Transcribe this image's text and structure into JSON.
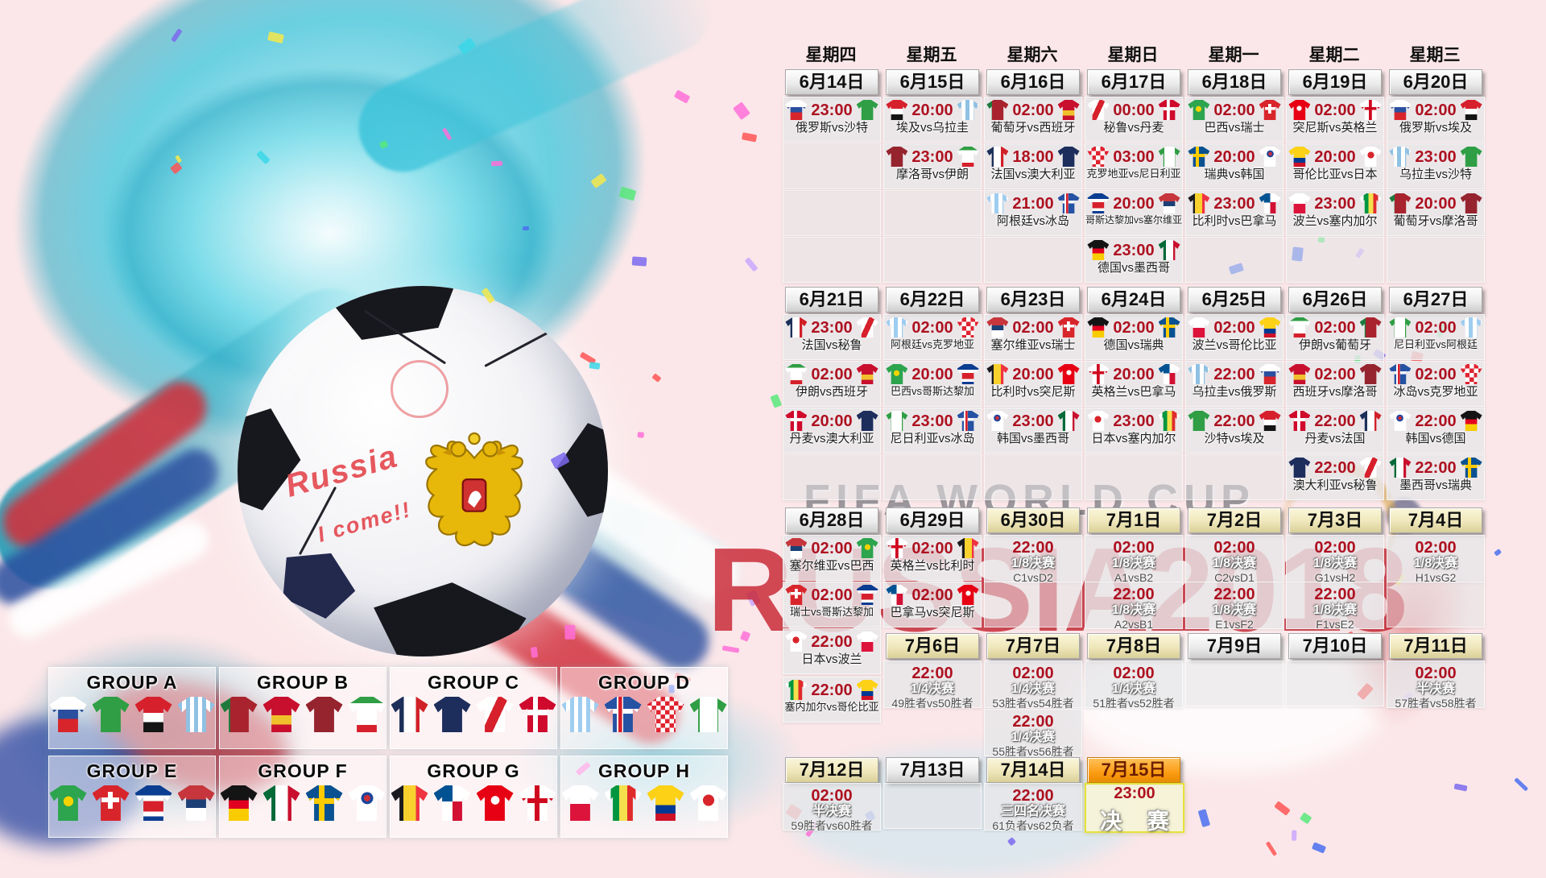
{
  "watermark": {
    "line1": "FIFA WORLD CUP",
    "line2": "RUSSIA2018"
  },
  "ball_text": {
    "line1": "Russia",
    "line2": "I come!!"
  },
  "colors": {
    "accent_red": "#ae1120",
    "bg_pink": "#fbe7e9",
    "splash_cyan": "#45c8dc",
    "date_white": "#ececec",
    "date_cream": "#efe7bb",
    "date_orange": "#fb9d14",
    "final_border_yellow": "#e7e13c"
  },
  "schedule": {
    "day_names": [
      "星期四",
      "星期五",
      "星期六",
      "星期日",
      "星期一",
      "星期二",
      "星期三"
    ],
    "rows": [
      {
        "type": "dates",
        "cells": [
          {
            "label": "6月14日",
            "style": "white"
          },
          {
            "label": "6月15日",
            "style": "white"
          },
          {
            "label": "6月16日",
            "style": "white"
          },
          {
            "label": "6月17日",
            "style": "white"
          },
          {
            "label": "6月18日",
            "style": "white"
          },
          {
            "label": "6月19日",
            "style": "white"
          },
          {
            "label": "6月20日",
            "style": "white"
          }
        ]
      },
      {
        "type": "matches",
        "cells": [
          {
            "time": "23:00",
            "teams": "俄罗斯vs沙特",
            "left": "russia",
            "right": "saudi"
          },
          {
            "time": "20:00",
            "teams": "埃及vs乌拉圭",
            "left": "egypt",
            "right": "uruguay"
          },
          {
            "time": "02:00",
            "teams": "葡萄牙vs西班牙",
            "left": "portugal",
            "right": "spain"
          },
          {
            "time": "00:00",
            "teams": "秘鲁vs丹麦",
            "left": "peru",
            "right": "denmark"
          },
          {
            "time": "02:00",
            "teams": "巴西vs瑞士",
            "left": "brazil",
            "right": "switzerland"
          },
          {
            "time": "02:00",
            "teams": "突尼斯vs英格兰",
            "left": "tunisia",
            "right": "england"
          },
          {
            "time": "02:00",
            "teams": "俄罗斯vs埃及",
            "left": "russia",
            "right": "egypt"
          }
        ]
      },
      {
        "type": "matches",
        "cells": [
          {
            "empty": true
          },
          {
            "time": "23:00",
            "teams": "摩洛哥vs伊朗",
            "left": "morocco",
            "right": "iran"
          },
          {
            "time": "18:00",
            "teams": "法国vs澳大利亚",
            "left": "france",
            "right": "australia"
          },
          {
            "time": "03:00",
            "teams": "克罗地亚vs尼日利亚",
            "left": "croatia",
            "right": "nigeria"
          },
          {
            "time": "20:00",
            "teams": "瑞典vs韩国",
            "left": "sweden",
            "right": "korea"
          },
          {
            "time": "20:00",
            "teams": "哥伦比亚vs日本",
            "left": "colombia",
            "right": "japan"
          },
          {
            "time": "23:00",
            "teams": "乌拉圭vs沙特",
            "left": "uruguay",
            "right": "saudi"
          }
        ]
      },
      {
        "type": "matches",
        "cells": [
          {
            "empty": true
          },
          {
            "empty": true
          },
          {
            "time": "21:00",
            "teams": "阿根廷vs冰岛",
            "left": "argentina",
            "right": "iceland"
          },
          {
            "time": "20:00",
            "teams": "哥斯达黎加vs塞尔维亚",
            "left": "costarica",
            "right": "serbia"
          },
          {
            "time": "23:00",
            "teams": "比利时vs巴拿马",
            "left": "belgium",
            "right": "panama"
          },
          {
            "time": "23:00",
            "teams": "波兰vs塞内加尔",
            "left": "poland",
            "right": "senegal"
          },
          {
            "time": "20:00",
            "teams": "葡萄牙vs摩洛哥",
            "left": "portugal",
            "right": "morocco"
          }
        ]
      },
      {
        "type": "matches",
        "cells": [
          {
            "empty": true
          },
          {
            "empty": true
          },
          {
            "empty": true
          },
          {
            "time": "23:00",
            "teams": "德国vs墨西哥",
            "left": "germany",
            "right": "mexico"
          },
          {
            "empty": true
          },
          {
            "empty": true
          },
          {
            "empty": true
          }
        ]
      },
      {
        "type": "dates",
        "cells": [
          {
            "label": "6月21日",
            "style": "white"
          },
          {
            "label": "6月22日",
            "style": "white"
          },
          {
            "label": "6月23日",
            "style": "white"
          },
          {
            "label": "6月24日",
            "style": "white"
          },
          {
            "label": "6月25日",
            "style": "white"
          },
          {
            "label": "6月26日",
            "style": "white"
          },
          {
            "label": "6月27日",
            "style": "white"
          }
        ]
      },
      {
        "type": "matches",
        "cells": [
          {
            "time": "23:00",
            "teams": "法国vs秘鲁",
            "left": "france",
            "right": "peru"
          },
          {
            "time": "02:00",
            "teams": "阿根廷vs克罗地亚",
            "left": "argentina",
            "right": "croatia"
          },
          {
            "time": "02:00",
            "teams": "塞尔维亚vs瑞士",
            "left": "serbia",
            "right": "switzerland"
          },
          {
            "time": "02:00",
            "teams": "德国vs瑞典",
            "left": "germany",
            "right": "sweden"
          },
          {
            "time": "02:00",
            "teams": "波兰vs哥伦比亚",
            "left": "poland",
            "right": "colombia"
          },
          {
            "time": "02:00",
            "teams": "伊朗vs葡萄牙",
            "left": "iran",
            "right": "portugal"
          },
          {
            "time": "02:00",
            "teams": "尼日利亚vs阿根廷",
            "left": "nigeria",
            "right": "argentina"
          }
        ]
      },
      {
        "type": "matches",
        "cells": [
          {
            "time": "02:00",
            "teams": "伊朗vs西班牙",
            "left": "iran",
            "right": "spain"
          },
          {
            "time": "20:00",
            "teams": "巴西vs哥斯达黎加",
            "left": "brazil",
            "right": "costarica"
          },
          {
            "time": "20:00",
            "teams": "比利时vs突尼斯",
            "left": "belgium",
            "right": "tunisia"
          },
          {
            "time": "20:00",
            "teams": "英格兰vs巴拿马",
            "left": "england",
            "right": "panama"
          },
          {
            "time": "22:00",
            "teams": "乌拉圭vs俄罗斯",
            "left": "uruguay",
            "right": "russia"
          },
          {
            "time": "02:00",
            "teams": "西班牙vs摩洛哥",
            "left": "spain",
            "right": "morocco"
          },
          {
            "time": "02:00",
            "teams": "冰岛vs克罗地亚",
            "left": "iceland",
            "right": "croatia"
          }
        ]
      },
      {
        "type": "matches",
        "cells": [
          {
            "time": "20:00",
            "teams": "丹麦vs澳大利亚",
            "left": "denmark",
            "right": "australia"
          },
          {
            "time": "23:00",
            "teams": "尼日利亚vs冰岛",
            "left": "nigeria",
            "right": "iceland"
          },
          {
            "time": "23:00",
            "teams": "韩国vs墨西哥",
            "left": "korea",
            "right": "mexico"
          },
          {
            "time": "23:00",
            "teams": "日本vs塞内加尔",
            "left": "japan",
            "right": "senegal"
          },
          {
            "time": "22:00",
            "teams": "沙特vs埃及",
            "left": "saudi",
            "right": "egypt"
          },
          {
            "time": "22:00",
            "teams": "丹麦vs法国",
            "left": "denmark",
            "right": "france"
          },
          {
            "time": "22:00",
            "teams": "韩国vs德国",
            "left": "korea",
            "right": "germany"
          }
        ]
      },
      {
        "type": "matches",
        "cells": [
          {
            "empty": true
          },
          {
            "empty": true
          },
          {
            "empty": true
          },
          {
            "empty": true
          },
          {
            "empty": true
          },
          {
            "time": "22:00",
            "teams": "澳大利亚vs秘鲁",
            "left": "australia",
            "right": "peru"
          },
          {
            "time": "22:00",
            "teams": "墨西哥vs瑞典",
            "left": "mexico",
            "right": "sweden"
          }
        ]
      },
      {
        "type": "dates",
        "cells": [
          {
            "label": "6月28日",
            "style": "white"
          },
          {
            "label": "6月29日",
            "style": "white"
          },
          {
            "label": "6月30日",
            "style": "cream"
          },
          {
            "label": "7月1日",
            "style": "cream"
          },
          {
            "label": "7月2日",
            "style": "cream"
          },
          {
            "label": "7月3日",
            "style": "cream"
          },
          {
            "label": "7月4日",
            "style": "cream"
          }
        ]
      },
      {
        "type": "matches",
        "cells": [
          {
            "time": "02:00",
            "teams": "塞尔维亚vs巴西",
            "left": "serbia",
            "right": "brazil"
          },
          {
            "time": "02:00",
            "teams": "英格兰vs比利时",
            "left": "england",
            "right": "belgium"
          },
          {
            "time": "22:00",
            "stage": "1/8决赛",
            "detail": "C1vsD2"
          },
          {
            "time": "02:00",
            "stage": "1/8决赛",
            "detail": "A1vsB2"
          },
          {
            "time": "02:00",
            "stage": "1/8决赛",
            "detail": "C2vsD1"
          },
          {
            "time": "02:00",
            "stage": "1/8决赛",
            "detail": "G1vsH2"
          },
          {
            "time": "02:00",
            "stage": "1/8决赛",
            "detail": "H1vsG2"
          }
        ]
      },
      {
        "type": "matches",
        "cells": [
          {
            "time": "02:00",
            "teams": "瑞士vs哥斯达黎加",
            "left": "switzerland",
            "right": "costarica"
          },
          {
            "time": "02:00",
            "teams": "巴拿马vs突尼斯",
            "left": "panama",
            "right": "tunisia"
          },
          {
            "empty": true
          },
          {
            "time": "22:00",
            "stage": "1/8决赛",
            "detail": "A2vsB1"
          },
          {
            "time": "22:00",
            "stage": "1/8决赛",
            "detail": "E1vsF2"
          },
          {
            "time": "22:00",
            "stage": "1/8决赛",
            "detail": "F1vsE2"
          },
          {
            "empty": true
          }
        ]
      },
      {
        "type": "mixed",
        "cells": [
          {
            "time": "22:00",
            "teams": "日本vs波兰",
            "left": "japan",
            "right": "poland"
          },
          {
            "label": "7月6日",
            "style": "cream"
          },
          {
            "label": "7月7日",
            "style": "cream"
          },
          {
            "label": "7月8日",
            "style": "cream"
          },
          {
            "label": "7月9日",
            "style": "white"
          },
          {
            "label": "7月10日",
            "style": "white"
          },
          {
            "label": "7月11日",
            "style": "cream"
          }
        ]
      },
      {
        "type": "matches",
        "cells": [
          {
            "time": "22:00",
            "teams": "塞内加尔vs哥伦比亚",
            "left": "senegal",
            "right": "colombia"
          },
          {
            "time": "22:00",
            "stage": "1/4决赛",
            "detail": "49胜者vs50胜者"
          },
          {
            "time": "02:00",
            "stage": "1/4决赛",
            "detail": "53胜者vs54胜者"
          },
          {
            "time": "02:00",
            "stage": "1/4决赛",
            "detail": "51胜者vs52胜者"
          },
          {
            "empty": true
          },
          {
            "empty": true
          },
          {
            "time": "02:00",
            "stage": "半决赛",
            "detail": "57胜者vs58胜者"
          }
        ]
      },
      {
        "type": "matches",
        "cells": [
          null,
          null,
          {
            "time": "22:00",
            "stage": "1/4决赛",
            "detail": "55胜者vs56胜者"
          },
          null,
          null,
          null,
          null
        ]
      },
      {
        "type": "dates",
        "cells": [
          {
            "label": "7月12日",
            "style": "cream"
          },
          {
            "label": "7月13日",
            "style": "white"
          },
          {
            "label": "7月14日",
            "style": "cream"
          },
          {
            "label": "7月15日",
            "style": "orange"
          },
          null,
          null,
          null
        ]
      },
      {
        "type": "matches",
        "cells": [
          {
            "time": "02:00",
            "stage": "半决赛",
            "detail": "59胜者vs60胜者"
          },
          {
            "empty": true
          },
          {
            "time": "22:00",
            "stage": "三四名决赛",
            "detail": "61负者vs62负者"
          },
          {
            "time": "23:00",
            "stage": "决 赛",
            "final": true
          },
          null,
          null,
          null
        ]
      }
    ]
  },
  "groups": [
    {
      "name": "GROUP A",
      "teams": [
        "russia",
        "saudi",
        "egypt",
        "uruguay"
      ]
    },
    {
      "name": "GROUP B",
      "teams": [
        "portugal",
        "spain",
        "morocco",
        "iran"
      ]
    },
    {
      "name": "GROUP C",
      "teams": [
        "france",
        "australia",
        "peru",
        "denmark"
      ]
    },
    {
      "name": "GROUP D",
      "teams": [
        "argentina",
        "iceland",
        "croatia",
        "nigeria"
      ]
    },
    {
      "name": "GROUP E",
      "teams": [
        "brazil",
        "switzerland",
        "costarica",
        "serbia"
      ]
    },
    {
      "name": "GROUP F",
      "teams": [
        "germany",
        "mexico",
        "sweden",
        "korea"
      ]
    },
    {
      "name": "GROUP G",
      "teams": [
        "belgium",
        "panama",
        "tunisia",
        "england"
      ]
    },
    {
      "name": "GROUP H",
      "teams": [
        "poland",
        "senegal",
        "colombia",
        "japan"
      ]
    }
  ]
}
